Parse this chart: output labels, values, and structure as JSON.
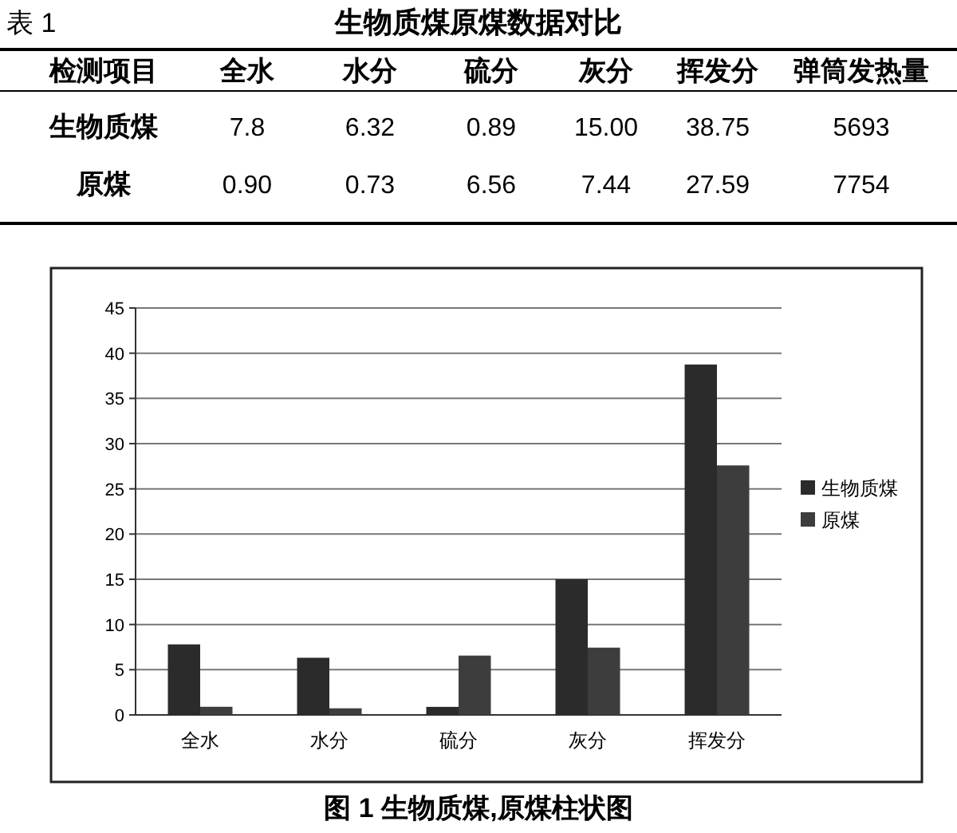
{
  "chart_data": [
    {
      "type": "other",
      "title": "生物质煤原煤数据对比",
      "annotations": [
        "表 1"
      ],
      "xlabel": "检测项目",
      "categories": [
        "全水",
        "水分",
        "硫分",
        "灰分",
        "挥发分",
        "弹筒发热量"
      ],
      "series": [
        {
          "name": "生物质煤",
          "values": [
            7.8,
            6.32,
            0.89,
            15.0,
            38.75,
            5693
          ],
          "value_labels": [
            "7.8",
            "6.32",
            "0.89",
            "15.00",
            "38.75",
            "5693"
          ]
        },
        {
          "name": "原煤",
          "values": [
            0.9,
            0.73,
            6.56,
            7.44,
            27.59,
            7754
          ],
          "value_labels": [
            "0.90",
            "0.73",
            "6.56",
            "7.44",
            "27.59",
            "7754"
          ]
        }
      ]
    },
    {
      "type": "bar",
      "title": "图 1  生物质煤,原煤柱状图",
      "categories": [
        "全水",
        "水分",
        "硫分",
        "灰分",
        "挥发分"
      ],
      "series": [
        {
          "name": "生物质煤",
          "color": "#2b2b2b",
          "values": [
            7.8,
            6.32,
            0.89,
            15.0,
            38.75
          ]
        },
        {
          "name": "原煤",
          "color": "#3d3d3d",
          "values": [
            0.9,
            0.73,
            6.56,
            7.44,
            27.59
          ]
        }
      ],
      "ylim": [
        0,
        45
      ],
      "yticks": [
        0,
        5,
        10,
        15,
        20,
        25,
        30,
        35,
        40,
        45
      ],
      "grid": "y",
      "legend": "right"
    }
  ]
}
